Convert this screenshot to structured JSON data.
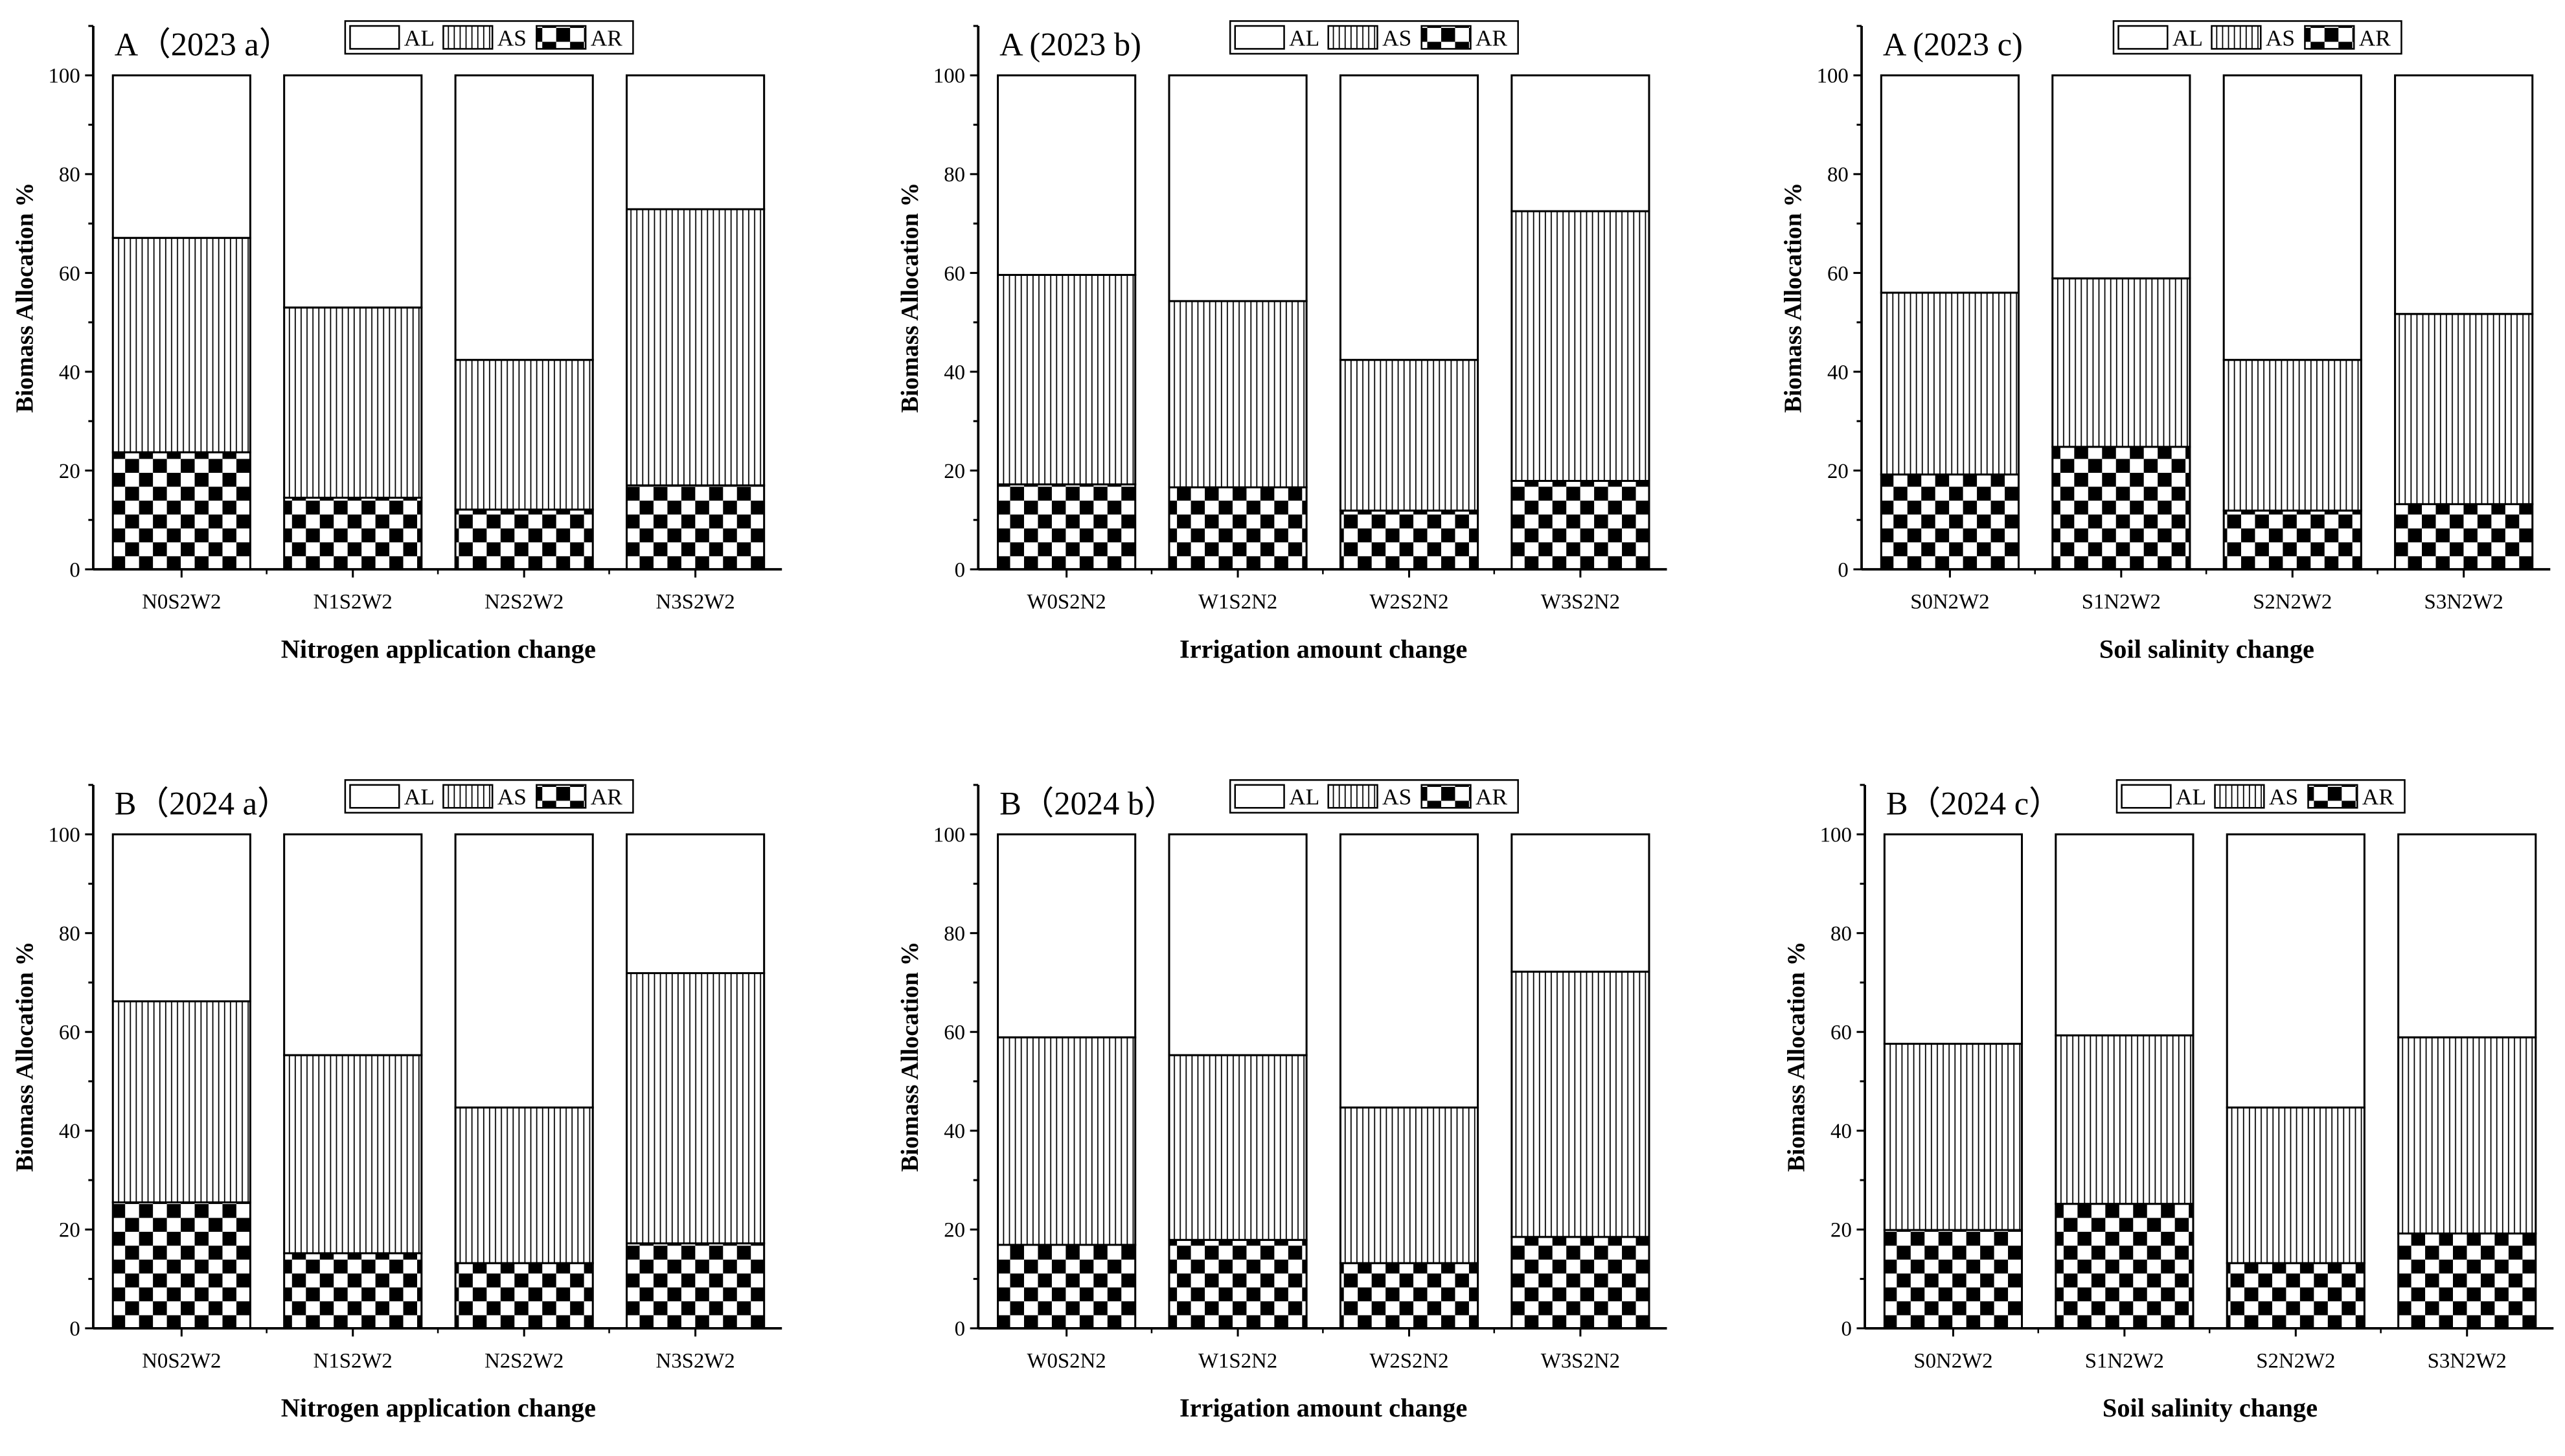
{
  "chart_data": [
    {
      "type": "bar",
      "stacked": true,
      "title": "A（2023 a）",
      "xlabel": "Nitrogen application change",
      "ylabel": "Biomass Allocation %",
      "ylim": [
        0,
        110
      ],
      "yticks": [
        0,
        20,
        40,
        60,
        80,
        100
      ],
      "grid": false,
      "legend_placement": "top",
      "categories": [
        "N0S2W2",
        "N1S2W2",
        "N2S2W2",
        "N3S2W2"
      ],
      "series": [
        {
          "name": "AR",
          "pattern": "checkerboard",
          "values": [
            23.7,
            14.5,
            12.1,
            17.0
          ]
        },
        {
          "name": "AS",
          "pattern": "vertical-lines",
          "values": [
            43.4,
            38.5,
            30.3,
            55.9
          ]
        },
        {
          "name": "AL",
          "pattern": "blank",
          "values": [
            32.9,
            47.0,
            57.6,
            27.1
          ]
        }
      ]
    },
    {
      "type": "bar",
      "stacked": true,
      "title": "A (2023 b)",
      "xlabel": "Irrigation amount change",
      "ylabel": "Biomass Allocation %",
      "ylim": [
        0,
        110
      ],
      "yticks": [
        0,
        20,
        40,
        60,
        80,
        100
      ],
      "grid": false,
      "legend_placement": "top",
      "categories": [
        "W0S2N2",
        "W1S2N2",
        "W2S2N2",
        "W3S2N2"
      ],
      "series": [
        {
          "name": "AR",
          "pattern": "checkerboard",
          "values": [
            17.2,
            16.6,
            11.9,
            17.9
          ]
        },
        {
          "name": "AS",
          "pattern": "vertical-lines",
          "values": [
            42.4,
            37.7,
            30.5,
            54.6
          ]
        },
        {
          "name": "AL",
          "pattern": "blank",
          "values": [
            40.4,
            45.7,
            57.6,
            27.5
          ]
        }
      ]
    },
    {
      "type": "bar",
      "stacked": true,
      "title": "A (2023 c)",
      "xlabel": "Soil salinity change",
      "ylabel": "Biomass Allocation %",
      "ylim": [
        0,
        110
      ],
      "yticks": [
        0,
        20,
        40,
        60,
        80,
        100
      ],
      "grid": false,
      "legend_placement": "top",
      "categories": [
        "S0N2W2",
        "S1N2W2",
        "S2N2W2",
        "S3N2W2"
      ],
      "series": [
        {
          "name": "AR",
          "pattern": "checkerboard",
          "values": [
            19.2,
            24.8,
            11.9,
            13.2
          ]
        },
        {
          "name": "AS",
          "pattern": "vertical-lines",
          "values": [
            36.8,
            34.1,
            30.5,
            38.5
          ]
        },
        {
          "name": "AL",
          "pattern": "blank",
          "values": [
            44.0,
            41.1,
            57.6,
            48.3
          ]
        }
      ]
    },
    {
      "type": "bar",
      "stacked": true,
      "title": "B（2024 a）",
      "xlabel": "Nitrogen application change",
      "ylabel": "Biomass Allocation %",
      "ylim": [
        0,
        110
      ],
      "yticks": [
        0,
        20,
        40,
        60,
        80,
        100
      ],
      "grid": false,
      "legend_placement": "top",
      "categories": [
        "N0S2W2",
        "N1S2W2",
        "N2S2W2",
        "N3S2W2"
      ],
      "series": [
        {
          "name": "AR",
          "pattern": "checkerboard",
          "values": [
            25.5,
            15.2,
            13.2,
            17.2
          ]
        },
        {
          "name": "AS",
          "pattern": "vertical-lines",
          "values": [
            40.7,
            40.1,
            31.5,
            54.7
          ]
        },
        {
          "name": "AL",
          "pattern": "blank",
          "values": [
            33.8,
            44.7,
            55.3,
            28.1
          ]
        }
      ]
    },
    {
      "type": "bar",
      "stacked": true,
      "title": "B（2024 b）",
      "xlabel": "Irrigation amount change",
      "ylabel": "Biomass Allocation %",
      "ylim": [
        0,
        110
      ],
      "yticks": [
        0,
        20,
        40,
        60,
        80,
        100
      ],
      "grid": false,
      "legend_placement": "top",
      "categories": [
        "W0S2N2",
        "W1S2N2",
        "W2S2N2",
        "W3S2N2"
      ],
      "series": [
        {
          "name": "AR",
          "pattern": "checkerboard",
          "values": [
            16.9,
            17.9,
            13.2,
            18.5
          ]
        },
        {
          "name": "AS",
          "pattern": "vertical-lines",
          "values": [
            42.0,
            37.4,
            31.5,
            53.7
          ]
        },
        {
          "name": "AL",
          "pattern": "blank",
          "values": [
            41.1,
            44.7,
            55.3,
            27.8
          ]
        }
      ]
    },
    {
      "type": "bar",
      "stacked": true,
      "title": "B（2024 c）",
      "xlabel": "Soil salinity change",
      "ylabel": "Biomass Allocation %",
      "ylim": [
        0,
        110
      ],
      "yticks": [
        0,
        20,
        40,
        60,
        80,
        100
      ],
      "grid": false,
      "legend_placement": "top",
      "categories": [
        "S0N2W2",
        "S1N2W2",
        "S2N2W2",
        "S3N2W2"
      ],
      "series": [
        {
          "name": "AR",
          "pattern": "checkerboard",
          "values": [
            19.9,
            25.2,
            13.2,
            19.2
          ]
        },
        {
          "name": "AS",
          "pattern": "vertical-lines",
          "values": [
            37.7,
            34.1,
            31.5,
            39.7
          ]
        },
        {
          "name": "AL",
          "pattern": "blank",
          "values": [
            42.4,
            40.7,
            55.3,
            41.1
          ]
        }
      ]
    }
  ],
  "legend_order": [
    "AL",
    "AS",
    "AR"
  ]
}
